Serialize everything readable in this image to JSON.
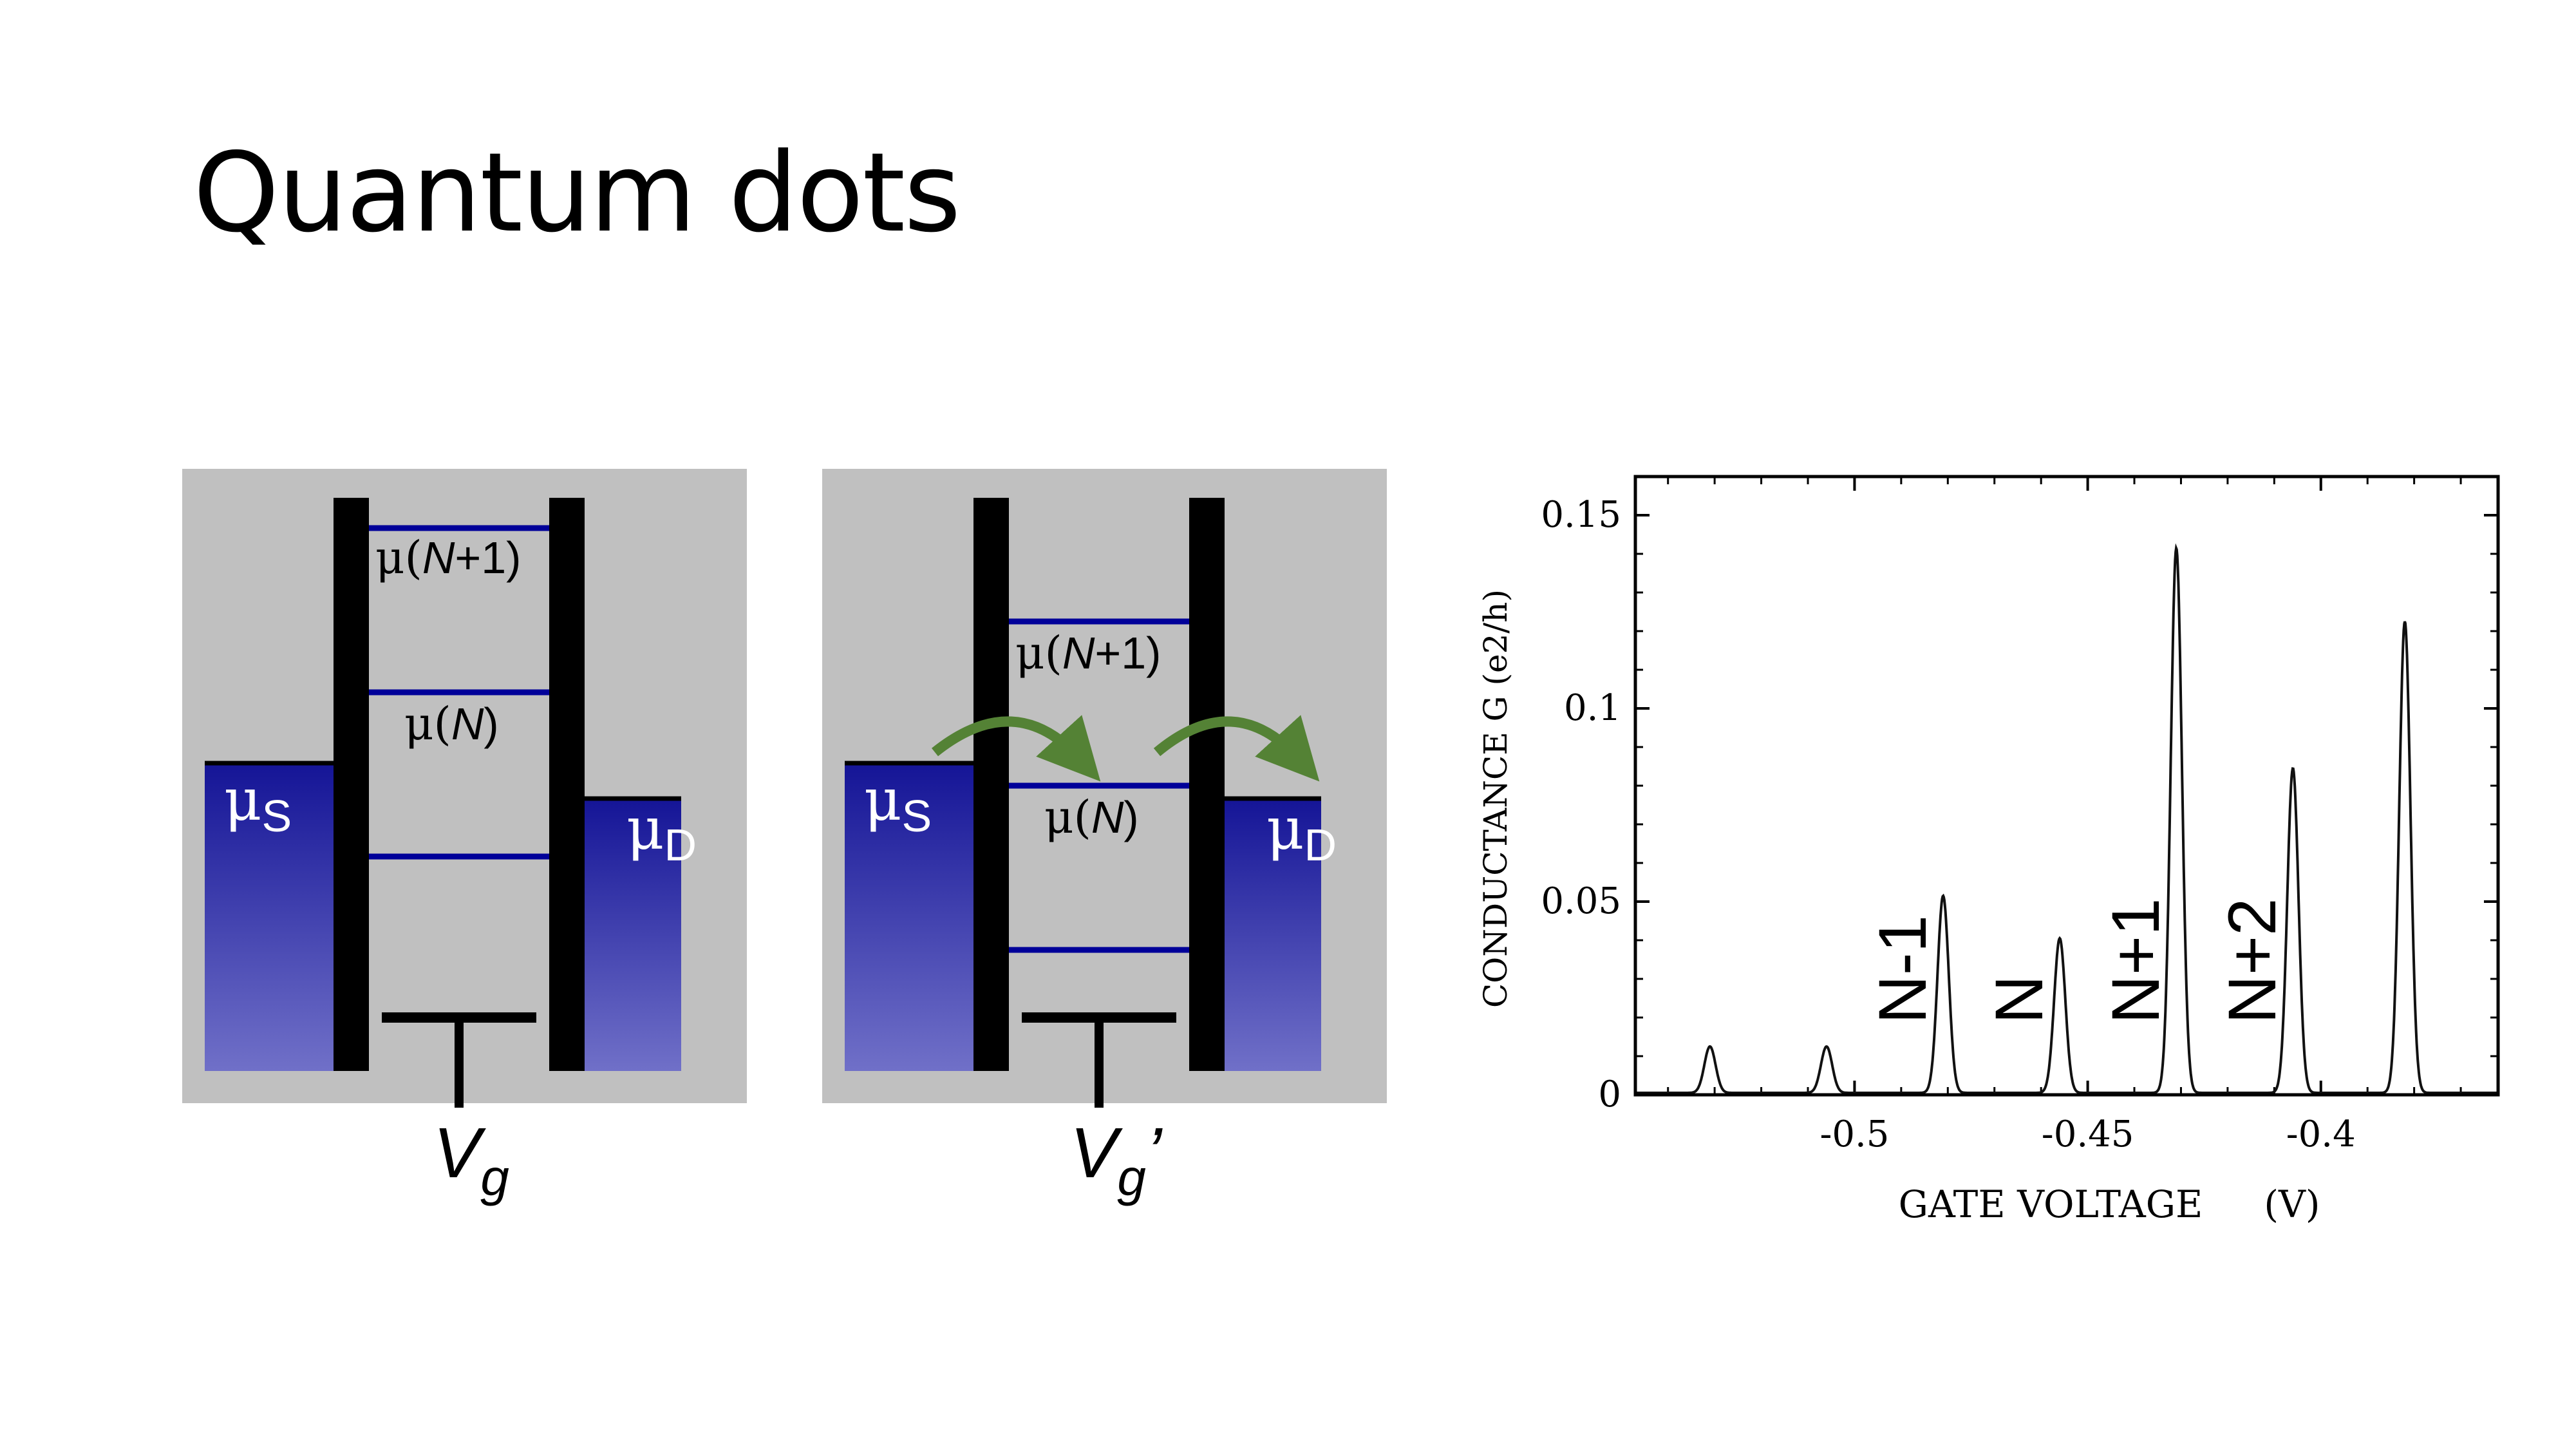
{
  "slide": {
    "title": "Quantum dots"
  },
  "colors": {
    "panel_bg": "#c0c0c0",
    "barrier": "#000000",
    "level_line": "#000099",
    "reservoir_top": "#141496",
    "reservoir_bottom": "#7070c8",
    "arrow": "#548235",
    "reservoir_text": "#ffffff"
  },
  "diagrams": [
    {
      "mu_source": {
        "symbol": "μ",
        "sub": "S"
      },
      "mu_drain": {
        "symbol": "μ",
        "sub": "D"
      },
      "level_labels": [
        {
          "prefix": "μ(",
          "n": "N",
          "suffix": "+1)"
        },
        {
          "prefix": "μ(",
          "n": "N",
          "suffix": ")"
        }
      ],
      "gate": {
        "symbol": "V",
        "sub": "g",
        "prime": ""
      }
    },
    {
      "mu_source": {
        "symbol": "μ",
        "sub": "S"
      },
      "mu_drain": {
        "symbol": "μ",
        "sub": "D"
      },
      "level_labels": [
        {
          "prefix": "μ(",
          "n": "N",
          "suffix": "+1)"
        },
        {
          "prefix": "μ(",
          "n": "N",
          "suffix": ")"
        }
      ],
      "gate": {
        "symbol": "V",
        "sub": "g",
        "prime": "’"
      }
    }
  ],
  "chart_data": {
    "type": "line",
    "xlabel": "GATE VOLTAGE",
    "xunit": "(V)",
    "ylabel": "CONDUCTANCE G (e2/h)",
    "xlim": [
      -0.547,
      -0.362
    ],
    "ylim": [
      0,
      0.16
    ],
    "xticks": [
      -0.5,
      -0.45,
      -0.4
    ],
    "xtick_labels": [
      "-0.5",
      "-0.45",
      "-0.4"
    ],
    "yticks": [
      0,
      0.05,
      0.1,
      0.15
    ],
    "ytick_labels": [
      "0",
      "0.05",
      "0.1",
      "0.15"
    ],
    "peaks": [
      {
        "x": -0.531,
        "height": 0.012
      },
      {
        "x": -0.506,
        "height": 0.012
      },
      {
        "x": -0.481,
        "height": 0.051
      },
      {
        "x": -0.456,
        "height": 0.04
      },
      {
        "x": -0.431,
        "height": 0.141
      },
      {
        "x": -0.406,
        "height": 0.084
      },
      {
        "x": -0.382,
        "height": 0.122
      }
    ],
    "annotations": [
      {
        "text": "N-1",
        "x": -0.49,
        "y": 0.02
      },
      {
        "text": "N",
        "x": -0.465,
        "y": 0.02
      },
      {
        "text": "N+1",
        "x": -0.44,
        "y": 0.02
      },
      {
        "text": "N+2",
        "x": -0.415,
        "y": 0.02
      }
    ]
  }
}
